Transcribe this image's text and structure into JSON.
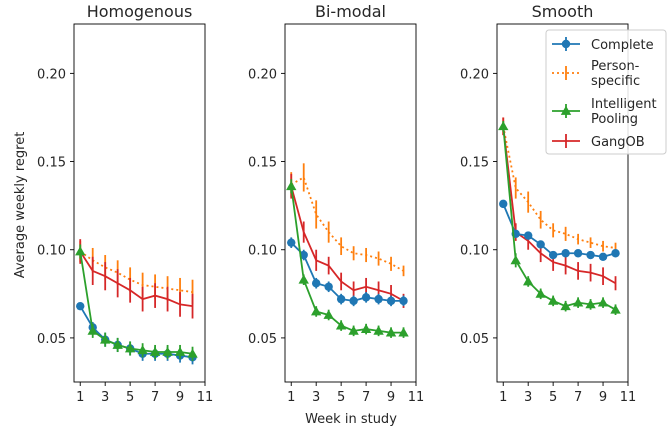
{
  "chart_data": {
    "type": "line",
    "xlabel": "Week in study",
    "ylabel": "Average weekly regret",
    "xlim": [
      0.5,
      11
    ],
    "ylim": [
      0.025,
      0.228
    ],
    "xticks": [
      1,
      3,
      5,
      7,
      9,
      11
    ],
    "yticks": [
      0.05,
      0.1,
      0.15,
      0.2
    ],
    "ytick_labels": [
      "0.05",
      "0.10",
      "0.15",
      "0.20"
    ],
    "legend_position": "upper right of third panel",
    "grid": false,
    "legend": [
      {
        "name": "Complete",
        "color": "#1f77b4",
        "marker": "circle",
        "linestyle": "solid"
      },
      {
        "name": "Person-\nspecific",
        "color": "#ff7f0e",
        "marker": "none",
        "linestyle": "dotted"
      },
      {
        "name": "Intelligent\nPooling",
        "color": "#2ca02c",
        "marker": "triangle",
        "linestyle": "solid"
      },
      {
        "name": "GangOB",
        "color": "#d62728",
        "marker": "none",
        "linestyle": "solid"
      }
    ],
    "panels": [
      {
        "title": "Homogenous",
        "x": [
          1,
          2,
          3,
          4,
          5,
          6,
          7,
          8,
          9,
          10
        ],
        "series": [
          {
            "key": "complete",
            "values": [
              0.068,
              0.056,
              0.049,
              0.046,
              0.044,
              0.041,
              0.041,
              0.041,
              0.04,
              0.039
            ],
            "err": [
              0.002,
              0.003,
              0.004,
              0.004,
              0.004,
              0.004,
              0.004,
              0.004,
              0.004,
              0.004
            ]
          },
          {
            "key": "person",
            "values": [
              0.099,
              0.094,
              0.09,
              0.087,
              0.083,
              0.08,
              0.079,
              0.078,
              0.077,
              0.076
            ],
            "err": [
              0.006,
              0.007,
              0.007,
              0.007,
              0.007,
              0.007,
              0.007,
              0.007,
              0.007,
              0.007
            ]
          },
          {
            "key": "pooling",
            "values": [
              0.099,
              0.054,
              0.049,
              0.046,
              0.044,
              0.043,
              0.042,
              0.042,
              0.042,
              0.041
            ],
            "err": [
              0.004,
              0.004,
              0.004,
              0.004,
              0.004,
              0.004,
              0.004,
              0.004,
              0.004,
              0.004
            ]
          },
          {
            "key": "gangob",
            "values": [
              0.099,
              0.088,
              0.085,
              0.081,
              0.077,
              0.072,
              0.074,
              0.072,
              0.069,
              0.068
            ],
            "err": [
              0.007,
              0.008,
              0.008,
              0.008,
              0.007,
              0.007,
              0.007,
              0.007,
              0.007,
              0.007
            ]
          }
        ]
      },
      {
        "title": "Bi-modal",
        "x": [
          1,
          2,
          3,
          4,
          5,
          6,
          7,
          8,
          9,
          10
        ],
        "series": [
          {
            "key": "complete",
            "values": [
              0.104,
              0.097,
              0.081,
              0.079,
              0.072,
              0.071,
              0.073,
              0.072,
              0.071,
              0.071
            ],
            "err": [
              0.003,
              0.003,
              0.003,
              0.003,
              0.003,
              0.003,
              0.003,
              0.003,
              0.003,
              0.003
            ]
          },
          {
            "key": "person",
            "values": [
              0.137,
              0.141,
              0.12,
              0.11,
              0.102,
              0.098,
              0.097,
              0.095,
              0.092,
              0.088
            ],
            "err": [
              0.007,
              0.008,
              0.008,
              0.006,
              0.005,
              0.004,
              0.004,
              0.004,
              0.004,
              0.003
            ]
          },
          {
            "key": "pooling",
            "values": [
              0.136,
              0.083,
              0.065,
              0.063,
              0.057,
              0.054,
              0.055,
              0.054,
              0.053,
              0.053
            ],
            "err": [
              0.004,
              0.003,
              0.003,
              0.003,
              0.003,
              0.003,
              0.003,
              0.003,
              0.003,
              0.003
            ]
          },
          {
            "key": "gangob",
            "values": [
              0.136,
              0.11,
              0.094,
              0.091,
              0.082,
              0.077,
              0.079,
              0.077,
              0.075,
              0.071
            ],
            "err": [
              0.007,
              0.006,
              0.006,
              0.005,
              0.005,
              0.005,
              0.005,
              0.005,
              0.005,
              0.004
            ]
          }
        ]
      },
      {
        "title": "Smooth",
        "x": [
          1,
          2,
          3,
          4,
          5,
          6,
          7,
          8,
          9,
          10
        ],
        "series": [
          {
            "key": "complete",
            "values": [
              0.126,
              0.109,
              0.108,
              0.103,
              0.097,
              0.098,
              0.098,
              0.097,
              0.096,
              0.098
            ],
            "err": [
              0.002,
              0.002,
              0.002,
              0.002,
              0.002,
              0.002,
              0.002,
              0.002,
              0.002,
              0.002
            ]
          },
          {
            "key": "person",
            "values": [
              0.17,
              0.135,
              0.127,
              0.117,
              0.111,
              0.109,
              0.106,
              0.104,
              0.102,
              0.101
            ],
            "err": [
              0.005,
              0.006,
              0.006,
              0.005,
              0.004,
              0.004,
              0.003,
              0.003,
              0.003,
              0.003
            ]
          },
          {
            "key": "pooling",
            "values": [
              0.17,
              0.094,
              0.082,
              0.075,
              0.071,
              0.068,
              0.07,
              0.069,
              0.07,
              0.066
            ],
            "err": [
              0.003,
              0.004,
              0.003,
              0.003,
              0.003,
              0.003,
              0.003,
              0.003,
              0.003,
              0.003
            ]
          },
          {
            "key": "gangob",
            "values": [
              0.17,
              0.11,
              0.105,
              0.098,
              0.093,
              0.091,
              0.088,
              0.087,
              0.085,
              0.081
            ],
            "err": [
              0.005,
              0.005,
              0.005,
              0.005,
              0.005,
              0.005,
              0.005,
              0.005,
              0.005,
              0.004
            ]
          }
        ]
      }
    ]
  }
}
